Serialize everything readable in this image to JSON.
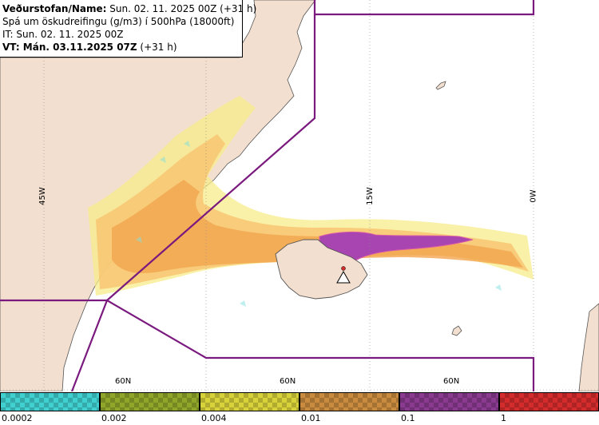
{
  "info": {
    "line1_label": "Veðurstofan/Name:",
    "line1_value": " Sun. 02. 11. 2025 00Z (+31 h)",
    "line2": "Spá um öskudreifingu (g/m3) í 500hPa (18000ft)",
    "line3": "IT: Sun. 02. 11. 2025 00Z",
    "line4_label": "VT: Mán. 03.11.2025 07Z",
    "line4_value": " (+31 h)"
  },
  "grid_labels": {
    "lon_45w": "45W",
    "lon_15w": "15W",
    "lon_0w": "0W",
    "lat_60n_a": "60N",
    "lat_60n_b": "60N",
    "lat_60n_c": "60N"
  },
  "legend": {
    "labels": [
      "0.0002",
      "0.002",
      "0.004",
      "0.01",
      "0.1",
      "1"
    ],
    "colors": [
      "#3fd0cf",
      "#8fa62a",
      "#d8d23a",
      "#c98b3e",
      "#8a3a8f",
      "#d42c2c"
    ]
  },
  "colors": {
    "land": "#f2dfcf",
    "boundary": "#7b1a7e",
    "ash_low": "#f7ec8a",
    "ash_mid": "#f8c572",
    "ash_high": "#f3a54f",
    "ash_purple": "#a845b0",
    "ash_cyan": "#7fe0e0"
  },
  "map_markers": {
    "volcano_symbol": "volcano-triangle"
  }
}
